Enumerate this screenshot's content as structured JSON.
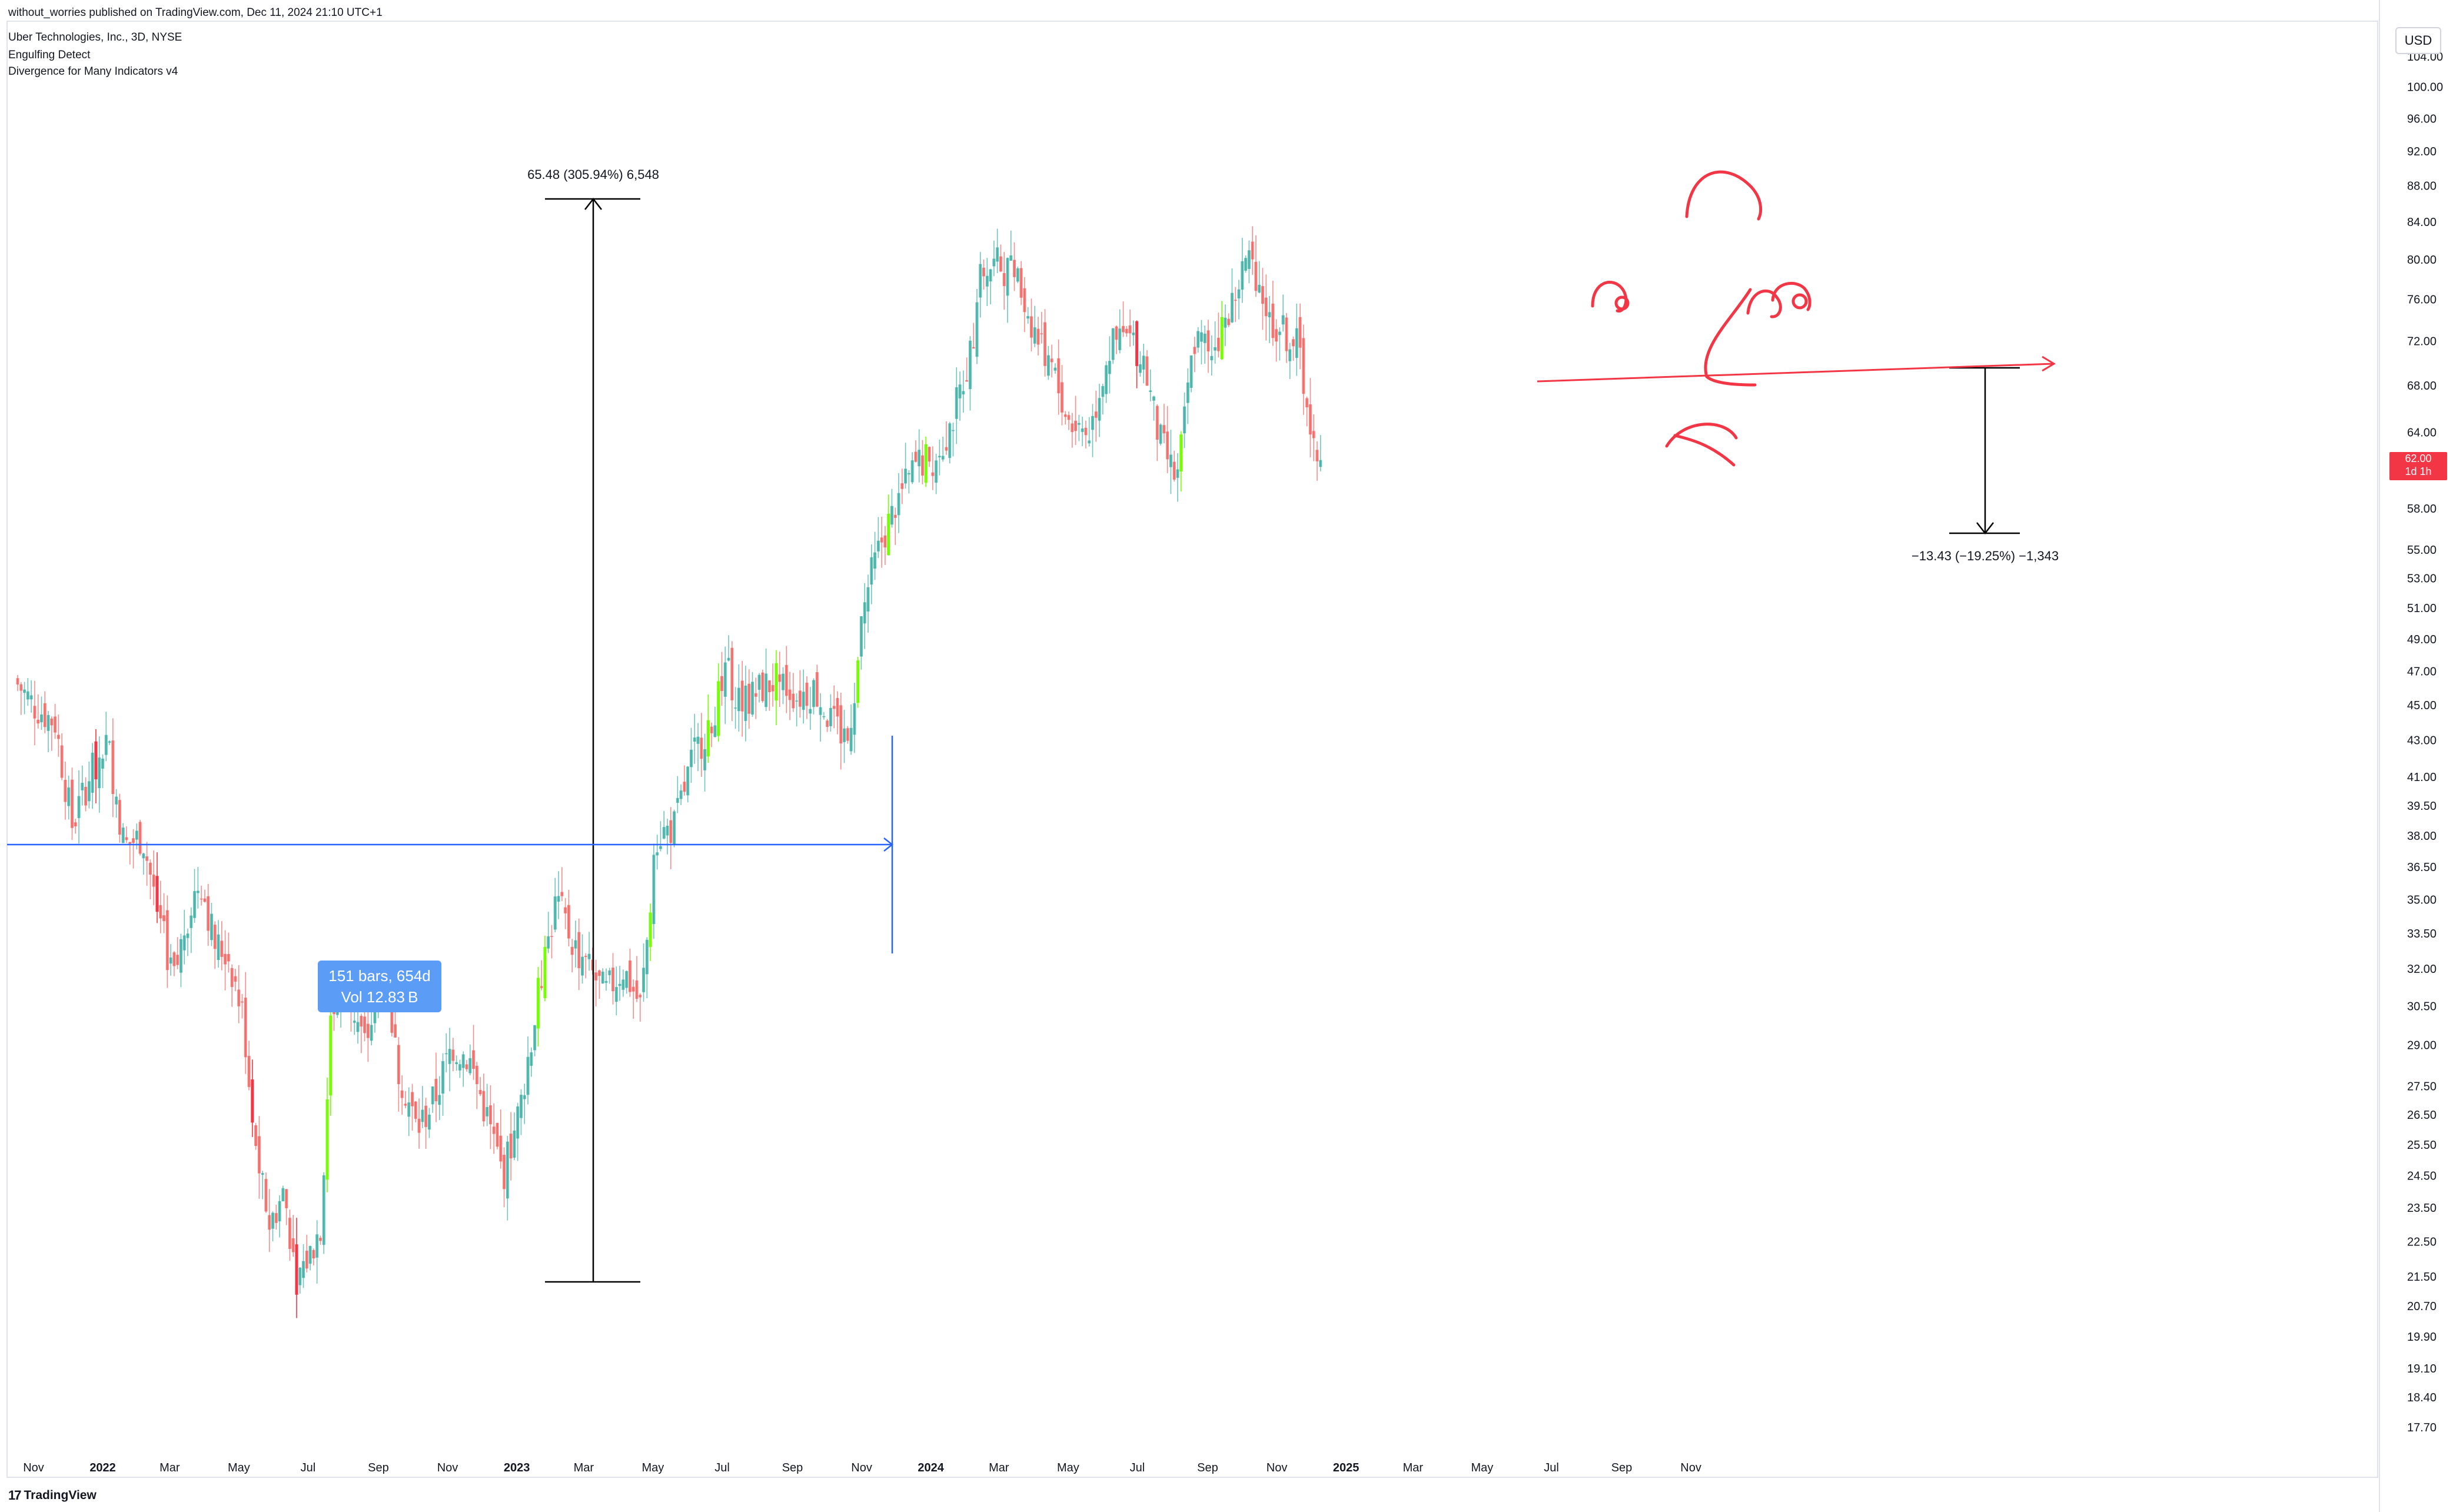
{
  "header": {
    "publish_line": "without_worries published on TradingView.com, Dec 11, 2024 21:10 UTC+1",
    "title": "Uber Technologies, Inc., 3D, NYSE",
    "indicators": [
      "Engulfing Detect",
      "Divergence for Many Indicators v4"
    ]
  },
  "footer": {
    "brand": "TradingView",
    "logo": "17"
  },
  "price_scale": {
    "currency": "USD",
    "last_price": "62.00",
    "last_countdown": "1d 1h"
  },
  "annotations": {
    "measure_up": "65.48 (305.94%) 6,548",
    "measure_down": "−13.43 (−19.25%) −1,343",
    "range_bars": "151 bars, 654d",
    "range_vol": "Vol 12.83 B"
  },
  "colors": {
    "up": "#26a69a",
    "down": "#ef5350",
    "engulf_up": "#76ff03",
    "engulf_down": "#f23645",
    "ruler": "#2962ff",
    "ruler_box": "#5b9cf6",
    "drawing": "#f23645",
    "axis_text": "#131722"
  },
  "chart_data": {
    "type": "candlestick",
    "title": "Uber Technologies, Inc., 3D, NYSE",
    "y_scale": "log",
    "ylim": [
      17.0,
      106.0
    ],
    "y_ticks": [
      "104.00",
      "100.00",
      "96.00",
      "92.00",
      "88.00",
      "84.00",
      "80.00",
      "76.00",
      "72.00",
      "68.00",
      "64.00",
      "62.00",
      "58.00",
      "55.00",
      "53.00",
      "51.00",
      "49.00",
      "47.00",
      "45.00",
      "43.00",
      "41.00",
      "39.50",
      "38.00",
      "36.50",
      "35.00",
      "33.50",
      "32.00",
      "30.50",
      "29.00",
      "27.50",
      "26.50",
      "25.50",
      "24.50",
      "23.50",
      "22.50",
      "21.50",
      "20.70",
      "19.90",
      "19.10",
      "18.40",
      "17.70"
    ],
    "x_ticks": [
      {
        "label": "Nov",
        "date": "2021-11-01"
      },
      {
        "label": "2022",
        "date": "2022-01-01",
        "bold": true
      },
      {
        "label": "Mar",
        "date": "2022-03-01"
      },
      {
        "label": "May",
        "date": "2022-05-01"
      },
      {
        "label": "Jul",
        "date": "2022-07-01"
      },
      {
        "label": "Sep",
        "date": "2022-09-01"
      },
      {
        "label": "Nov",
        "date": "2022-11-01"
      },
      {
        "label": "2023",
        "date": "2023-01-01",
        "bold": true
      },
      {
        "label": "Mar",
        "date": "2023-03-01"
      },
      {
        "label": "May",
        "date": "2023-05-01"
      },
      {
        "label": "Jul",
        "date": "2023-07-01"
      },
      {
        "label": "Sep",
        "date": "2023-09-01"
      },
      {
        "label": "Nov",
        "date": "2023-11-01"
      },
      {
        "label": "2024",
        "date": "2024-01-01",
        "bold": true
      },
      {
        "label": "Mar",
        "date": "2024-03-01"
      },
      {
        "label": "May",
        "date": "2024-05-01"
      },
      {
        "label": "Jul",
        "date": "2024-07-01"
      },
      {
        "label": "Sep",
        "date": "2024-09-01"
      },
      {
        "label": "Nov",
        "date": "2024-11-01"
      },
      {
        "label": "2025",
        "date": "2025-01-01",
        "bold": true
      },
      {
        "label": "Mar",
        "date": "2025-03-01"
      },
      {
        "label": "May",
        "date": "2025-05-01"
      },
      {
        "label": "Jul",
        "date": "2025-07-01"
      },
      {
        "label": "Sep",
        "date": "2025-09-01"
      },
      {
        "label": "Nov",
        "date": "2025-11-01"
      }
    ],
    "close_path": [
      [
        "2021-10-15",
        46.5
      ],
      [
        "2021-11-01",
        45.0
      ],
      [
        "2021-11-20",
        44.0
      ],
      [
        "2021-12-05",
        38.5
      ],
      [
        "2021-12-20",
        41.0
      ],
      [
        "2022-01-05",
        43.0
      ],
      [
        "2022-01-20",
        37.5
      ],
      [
        "2022-02-05",
        38.0
      ],
      [
        "2022-02-20",
        34.0
      ],
      [
        "2022-03-05",
        31.5
      ],
      [
        "2022-03-15",
        34.0
      ],
      [
        "2022-03-28",
        36.0
      ],
      [
        "2022-04-10",
        33.0
      ],
      [
        "2022-04-22",
        32.5
      ],
      [
        "2022-05-05",
        30.0
      ],
      [
        "2022-05-15",
        25.5
      ],
      [
        "2022-05-28",
        23.0
      ],
      [
        "2022-06-10",
        24.0
      ],
      [
        "2022-06-20",
        21.5
      ],
      [
        "2022-07-01",
        22.0
      ],
      [
        "2022-07-12",
        23.0
      ],
      [
        "2022-07-22",
        30.5
      ],
      [
        "2022-08-05",
        31.0
      ],
      [
        "2022-08-20",
        29.0
      ],
      [
        "2022-09-05",
        31.5
      ],
      [
        "2022-09-20",
        28.0
      ],
      [
        "2022-10-05",
        26.0
      ],
      [
        "2022-10-20",
        27.0
      ],
      [
        "2022-11-05",
        29.0
      ],
      [
        "2022-11-20",
        28.5
      ],
      [
        "2022-12-05",
        26.5
      ],
      [
        "2022-12-20",
        24.5
      ],
      [
        "2023-01-05",
        27.0
      ],
      [
        "2023-01-20",
        31.0
      ],
      [
        "2023-02-05",
        35.0
      ],
      [
        "2023-02-20",
        33.0
      ],
      [
        "2023-03-05",
        32.0
      ],
      [
        "2023-03-20",
        31.0
      ],
      [
        "2023-04-05",
        32.0
      ],
      [
        "2023-04-20",
        30.5
      ],
      [
        "2023-05-05",
        38.0
      ],
      [
        "2023-05-20",
        38.5
      ],
      [
        "2023-06-05",
        42.0
      ],
      [
        "2023-06-20",
        44.0
      ],
      [
        "2023-07-05",
        47.0
      ],
      [
        "2023-07-20",
        45.0
      ],
      [
        "2023-08-05",
        46.0
      ],
      [
        "2023-08-20",
        46.5
      ],
      [
        "2023-09-05",
        45.5
      ],
      [
        "2023-09-20",
        46.0
      ],
      [
        "2023-10-05",
        44.0
      ],
      [
        "2023-10-20",
        43.0
      ],
      [
        "2023-11-05",
        52.0
      ],
      [
        "2023-11-20",
        56.0
      ],
      [
        "2023-12-05",
        59.0
      ],
      [
        "2023-12-20",
        61.5
      ],
      [
        "2024-01-05",
        62.0
      ],
      [
        "2024-01-20",
        65.0
      ],
      [
        "2024-02-05",
        71.0
      ],
      [
        "2024-02-15",
        79.0
      ],
      [
        "2024-03-01",
        79.5
      ],
      [
        "2024-03-15",
        78.5
      ],
      [
        "2024-04-01",
        73.0
      ],
      [
        "2024-04-15",
        70.0
      ],
      [
        "2024-05-01",
        65.0
      ],
      [
        "2024-05-20",
        64.0
      ],
      [
        "2024-06-05",
        71.0
      ],
      [
        "2024-06-20",
        72.5
      ],
      [
        "2024-07-05",
        71.0
      ],
      [
        "2024-07-20",
        63.5
      ],
      [
        "2024-08-05",
        60.0
      ],
      [
        "2024-08-20",
        72.0
      ],
      [
        "2024-09-05",
        71.5
      ],
      [
        "2024-09-20",
        74.5
      ],
      [
        "2024-10-05",
        80.0
      ],
      [
        "2024-10-15",
        78.5
      ],
      [
        "2024-10-25",
        74.0
      ],
      [
        "2024-11-05",
        73.0
      ],
      [
        "2024-11-20",
        71.5
      ],
      [
        "2024-12-01",
        64.5
      ],
      [
        "2024-12-10",
        62.0
      ]
    ]
  }
}
